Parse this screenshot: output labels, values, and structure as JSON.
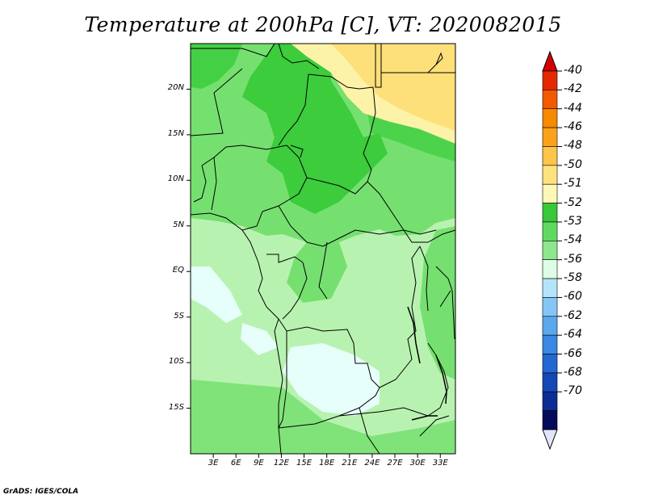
{
  "title": "Temperature at 200hPa [C], VT: 2020082015",
  "credit": "GrADS: IGES/COLA",
  "map": {
    "lat_range": [
      -20,
      25
    ],
    "lon_range": [
      0,
      35
    ],
    "lat_ticks": [
      {
        "value": 20,
        "label": "20N"
      },
      {
        "value": 15,
        "label": "15N"
      },
      {
        "value": 10,
        "label": "10N"
      },
      {
        "value": 5,
        "label": "5N"
      },
      {
        "value": 0,
        "label": "EQ"
      },
      {
        "value": -5,
        "label": "5S"
      },
      {
        "value": -10,
        "label": "10S"
      },
      {
        "value": -15,
        "label": "15S"
      }
    ],
    "lon_ticks": [
      {
        "value": 3,
        "label": "3E"
      },
      {
        "value": 6,
        "label": "6E"
      },
      {
        "value": 9,
        "label": "9E"
      },
      {
        "value": 12,
        "label": "12E"
      },
      {
        "value": 15,
        "label": "15E"
      },
      {
        "value": 18,
        "label": "18E"
      },
      {
        "value": 21,
        "label": "21E"
      },
      {
        "value": 24,
        "label": "24E"
      },
      {
        "value": 27,
        "label": "27E"
      },
      {
        "value": 30,
        "label": "30E"
      },
      {
        "value": 33,
        "label": "33E"
      }
    ]
  },
  "colorbar": {
    "labels": [
      "-40",
      "-42",
      "-44",
      "-46",
      "-48",
      "-50",
      "-51",
      "-52",
      "-53",
      "-54",
      "-56",
      "-58",
      "-60",
      "-62",
      "-64",
      "-66",
      "-68",
      "-70"
    ],
    "colors": [
      "#e52800",
      "#f25a00",
      "#f78a00",
      "#fba21a",
      "#fdc54a",
      "#fde27d",
      "#fef7b5",
      "#38c838",
      "#61d961",
      "#8ee68e",
      "#ddfde5",
      "#b3e4fa",
      "#84c7f7",
      "#5aa8ee",
      "#3a88e2",
      "#2368d0",
      "#1548b5",
      "#0c2e94",
      "#050a5c"
    ],
    "top_cap_color": "#d40000",
    "bottom_cap_color": "#e3e5fc"
  },
  "palette": {
    "light_green": "#b8f2b0",
    "mid_green": "#75e070",
    "dark_green": "#3ccc3c",
    "light_yellow": "#fdf3a8",
    "yellow": "#fde07a",
    "ice": "#e6fffa"
  }
}
